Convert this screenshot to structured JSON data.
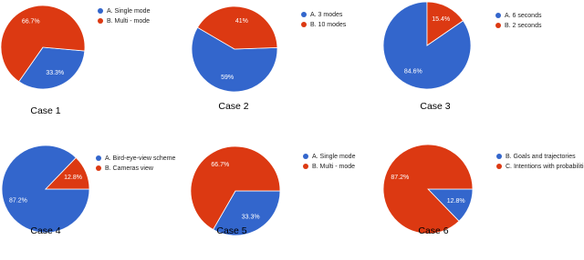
{
  "chart_data": [
    {
      "type": "pie",
      "title": "Case 1",
      "categories": [
        "A. Single mode",
        "B. Multi - mode"
      ],
      "values": [
        33.3,
        66.7
      ],
      "value_labels": [
        "33.3%",
        "66.7%"
      ],
      "colors": [
        "#3366cc",
        "#dc3912"
      ]
    },
    {
      "type": "pie",
      "title": "Case 2",
      "categories": [
        "A. 3 modes",
        "B. 10 modes"
      ],
      "values": [
        59,
        41
      ],
      "value_labels": [
        "59%",
        "41%"
      ],
      "colors": [
        "#3366cc",
        "#dc3912"
      ]
    },
    {
      "type": "pie",
      "title": "Case 3",
      "categories": [
        "A. 6 seconds",
        "B. 2 seconds"
      ],
      "values": [
        84.6,
        15.4
      ],
      "value_labels": [
        "84.6%",
        "15.4%"
      ],
      "colors": [
        "#3366cc",
        "#dc3912"
      ]
    },
    {
      "type": "pie",
      "title": "Case 4",
      "categories": [
        "A. Bird-eye-view scheme",
        "B. Cameras view"
      ],
      "values": [
        87.2,
        12.8
      ],
      "value_labels": [
        "87.2%",
        "12.8%"
      ],
      "colors": [
        "#3366cc",
        "#dc3912"
      ]
    },
    {
      "type": "pie",
      "title": "Case 5",
      "categories": [
        "A. Single mode",
        "B. Multi - mode"
      ],
      "values": [
        33.3,
        66.7
      ],
      "value_labels": [
        "33.3%",
        "66.7%"
      ],
      "colors": [
        "#3366cc",
        "#dc3912"
      ]
    },
    {
      "type": "pie",
      "title": "Case 6",
      "categories": [
        "B. Goals and trajectories",
        "C. Intentions with probabilities"
      ],
      "values": [
        12.8,
        87.2
      ],
      "value_labels": [
        "12.8%",
        "87.2%"
      ],
      "colors": [
        "#3366cc",
        "#dc3912"
      ]
    }
  ]
}
